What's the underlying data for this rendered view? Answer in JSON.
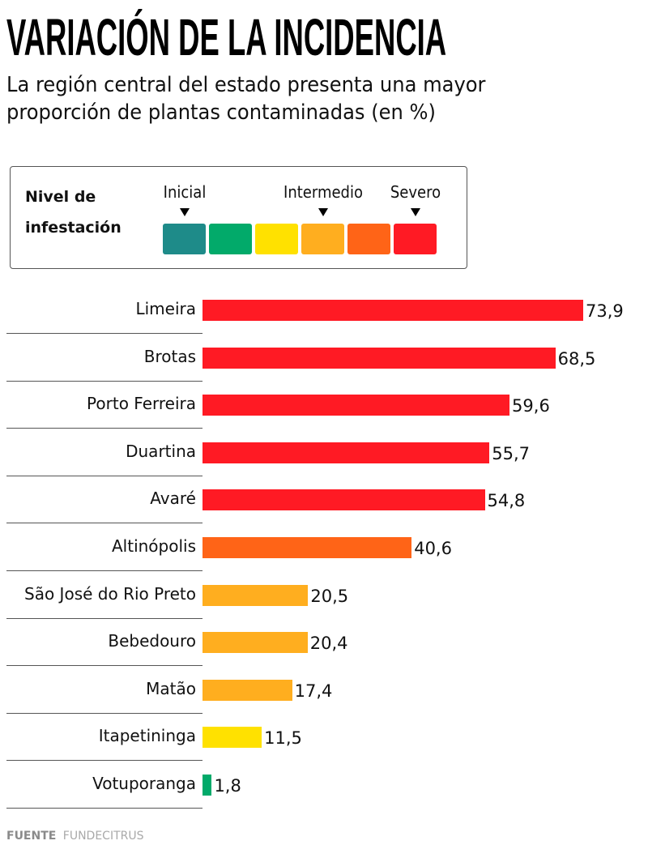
{
  "header": {
    "title": "VARIACIÓN DE LA INCIDENCIA",
    "subtitle": "La región central del estado presenta una mayor proporción de plantas contaminadas (en %)"
  },
  "legend": {
    "title_line1": "Nivel de",
    "title_line2": "infestación",
    "levels": [
      {
        "label": "Inicial",
        "swatch_index": 0
      },
      {
        "label": "Intermedio",
        "swatch_index": 3
      },
      {
        "label": "Severo",
        "swatch_index": 5
      }
    ],
    "swatches": [
      "#1e8b89",
      "#02aa6a",
      "#ffe100",
      "#ffae1f",
      "#ff6417",
      "#ff1a24"
    ]
  },
  "chart_data": {
    "type": "bar",
    "orientation": "horizontal",
    "title": "VARIACIÓN DE LA INCIDENCIA",
    "subtitle": "La región central del estado presenta una mayor proporción de plantas contaminadas (en %)",
    "xlabel": "",
    "ylabel": "",
    "xlim": [
      0,
      73.9
    ],
    "grid": false,
    "categories": [
      "Limeira",
      "Brotas",
      "Porto Ferreira",
      "Duartina",
      "Avaré",
      "Altinópolis",
      "São José do Rio Preto",
      "Bebedouro",
      "Matão",
      "Itapetininga",
      "Votuporanga"
    ],
    "values": [
      73.9,
      68.5,
      59.6,
      55.7,
      54.8,
      40.6,
      20.5,
      20.4,
      17.4,
      11.5,
      1.8
    ],
    "value_labels": [
      "73,9",
      "68,5",
      "59,6",
      "55,7",
      "54,8",
      "40,6",
      "20,5",
      "20,4",
      "17,4",
      "11,5",
      "1,8"
    ],
    "colors": [
      "#ff1a24",
      "#ff1a24",
      "#ff1a24",
      "#ff1a24",
      "#ff1a24",
      "#ff6417",
      "#ffae1f",
      "#ffae1f",
      "#ffae1f",
      "#ffe100",
      "#02aa6a"
    ]
  },
  "footer": {
    "source_label": "FUENTE",
    "source_name": "FUNDECITRUS"
  }
}
